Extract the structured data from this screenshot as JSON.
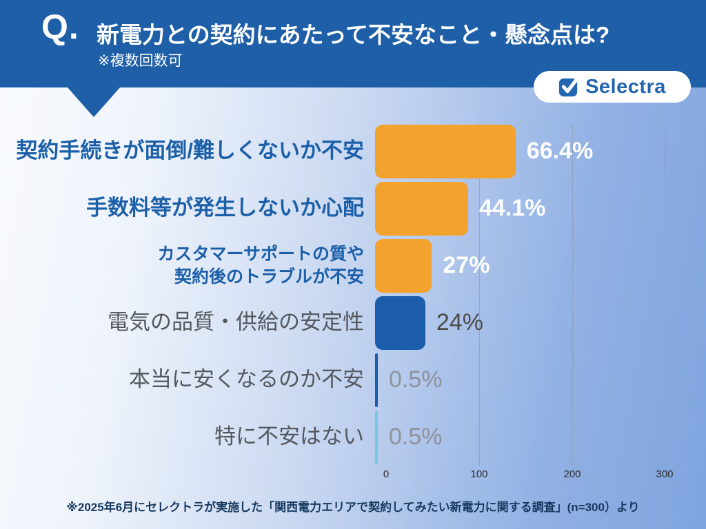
{
  "header": {
    "q_mark": "Q.",
    "title": "新電力との契約にあたって不安なこと・懸念点は?",
    "subtitle": "※複数回数可"
  },
  "logo": {
    "text": "Selectra",
    "icon": "checkbox-check-icon",
    "text_color": "#2365ae",
    "icon_color": "#2365ae"
  },
  "footer": {
    "source_note": "※2025年6月にセレクトラが実施した「関西電力エリアで契約してみたい新電力に関する調査」(n=300）より"
  },
  "colors": {
    "header_bg": "#1e5fa8",
    "bar_orange": "#f2a22d",
    "bar_blue": "#1c5dab",
    "bar_lightblue": "#74c9ec",
    "category_blue": "#1b5fa8",
    "category_gray": "#54585e",
    "value_white": "#ffffff",
    "value_dark": "#4c4a48",
    "value_muted": "#8e939b",
    "background_gradient_start": "#f9fbfe",
    "background_gradient_end": "#7fa4de",
    "gridline": "#8e99ad",
    "footer_text": "#17395f"
  },
  "chart_data": {
    "type": "bar",
    "orientation": "horizontal",
    "title": "新電力との契約にあたって不安なこと・懸念点は?",
    "note": "※複数回数可",
    "xlabel": "",
    "ylabel": "",
    "xlim": [
      0,
      300
    ],
    "x_ticks": [
      0,
      100,
      200,
      300
    ],
    "grid": "vertical gridlines at 100, 200, 300",
    "legend": "none",
    "sample_size": "n=300",
    "rows": [
      {
        "label": "契約手続きが面倒/難しくないか不安",
        "value_label": "66.4%",
        "percent": 66.4,
        "axis_value": 151,
        "bar_color": "#f2a22d",
        "label_class": "lab-blue",
        "value_class": "val-white"
      },
      {
        "label": "手数料等が発生しないか心配",
        "value_label": "44.1%",
        "percent": 44.1,
        "axis_value": 100,
        "bar_color": "#f2a22d",
        "label_class": "lab-blue",
        "value_class": "val-white"
      },
      {
        "label": "カスタマーサポートの質や\n契約後のトラブルが不安",
        "value_label": "27%",
        "percent": 27,
        "axis_value": 61,
        "bar_color": "#f2a22d",
        "label_class": "lab-blue-small",
        "value_class": "val-white"
      },
      {
        "label": "電気の品質・供給の安定性",
        "value_label": "24%",
        "percent": 24,
        "axis_value": 54,
        "bar_color": "#1c5dab",
        "label_class": "lab-gray",
        "value_class": "val-dark"
      },
      {
        "label": "本当に安くなるのか不安",
        "value_label": "0.5%",
        "percent": 0.5,
        "axis_value": 1.1,
        "bar_color": "#1c5dab",
        "label_class": "lab-gray",
        "value_class": "val-muted"
      },
      {
        "label": "特に不安はない",
        "value_label": "0.5%",
        "percent": 0.5,
        "axis_value": 1.1,
        "bar_color": "#74c9ec",
        "label_class": "lab-gray",
        "value_class": "val-muted"
      }
    ]
  }
}
